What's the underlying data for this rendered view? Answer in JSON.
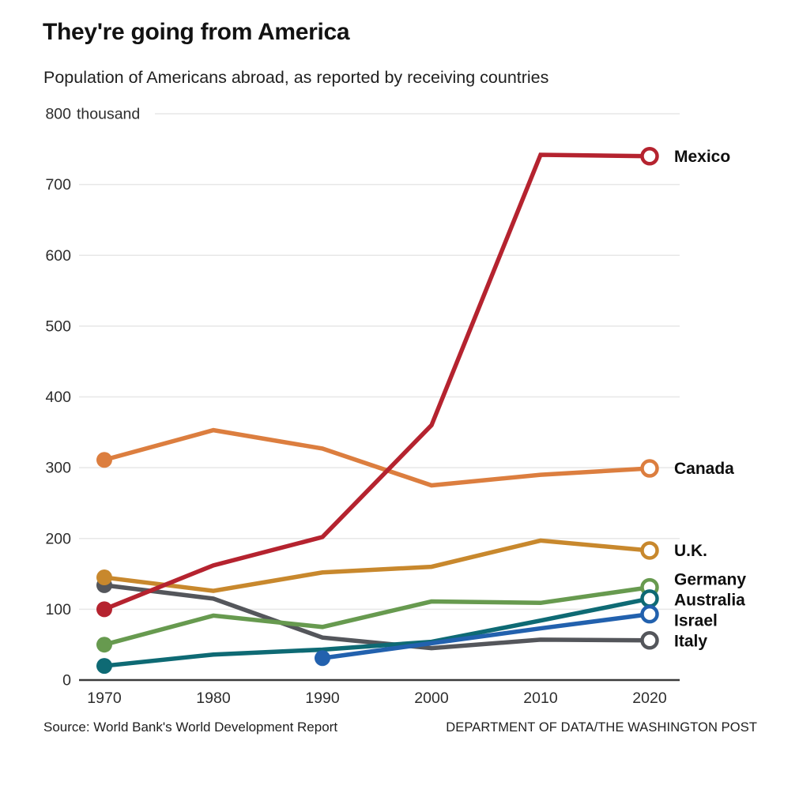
{
  "chart_data": {
    "type": "line",
    "title": "They're going from America",
    "subtitle": "Population of Americans abroad, as reported by receiving countries",
    "unit_suffix": "thousand",
    "x": [
      1970,
      1980,
      1990,
      2000,
      2010,
      2020
    ],
    "ylim": [
      0,
      800
    ],
    "yticks": [
      0,
      100,
      200,
      300,
      400,
      500,
      600,
      700,
      800
    ],
    "grid": true,
    "legend_position": "labels-right-of-line-endpoints",
    "values_unit": "thousands of people",
    "series": [
      {
        "name": "Italy",
        "color": "#54565B",
        "values": [
          134,
          115,
          60,
          45,
          57,
          56
        ]
      },
      {
        "name": "Germany",
        "color": "#679A4F",
        "values": [
          50,
          91,
          75,
          111,
          109,
          131
        ]
      },
      {
        "name": "Australia",
        "color": "#0E6A74",
        "values": [
          20,
          36,
          43,
          54,
          84,
          115
        ]
      },
      {
        "name": "Israel",
        "color": "#2261AE",
        "values": [
          null,
          null,
          31,
          52,
          73,
          93
        ]
      },
      {
        "name": "U.K.",
        "color": "#C8882D",
        "values": [
          145,
          126,
          152,
          160,
          197,
          183
        ]
      },
      {
        "name": "Canada",
        "color": "#DC7E3F",
        "values": [
          311,
          353,
          327,
          275,
          290,
          299
        ]
      },
      {
        "name": "Mexico",
        "color": "#B5232F",
        "values": [
          100,
          162,
          202,
          360,
          742,
          740
        ]
      }
    ],
    "source": "Source: World Bank's World Development Report",
    "credit": "DEPARTMENT OF DATA/THE WASHINGTON POST"
  }
}
